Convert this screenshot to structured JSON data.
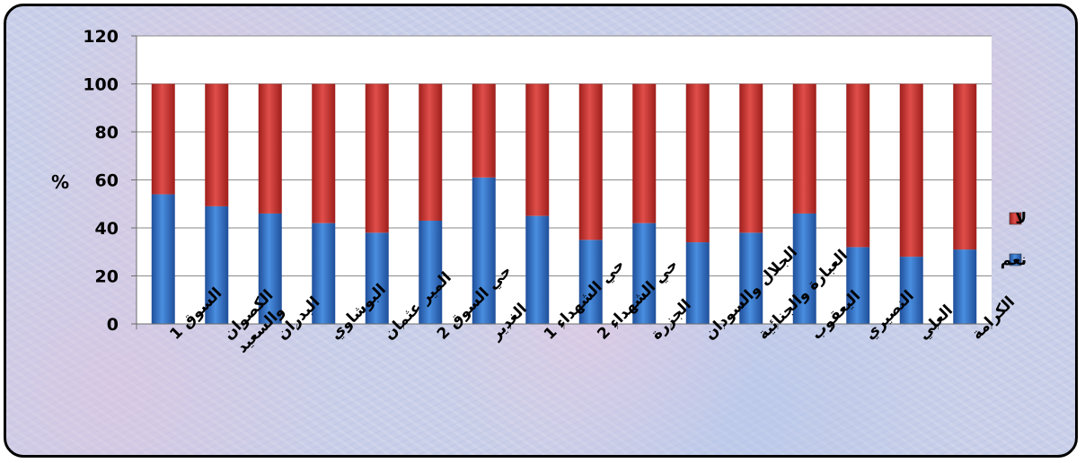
{
  "chart_data": {
    "type": "bar",
    "stacked": true,
    "categories": [
      [
        "السوق 1"
      ],
      [
        "الكصوان",
        "والسعيد"
      ],
      [
        "البدران"
      ],
      [
        "البوشاوي"
      ],
      [
        "المير عثمان"
      ],
      [
        "حي السوق 2"
      ],
      [
        "الغدير"
      ],
      [
        "حي الشهداء 1"
      ],
      [
        "حي الشهداء 2"
      ],
      [
        "الجزرة"
      ],
      [
        "الجلال والسودان"
      ],
      [
        "العبارة والجنائية"
      ],
      [
        "اليعقوب"
      ],
      [
        "النصيري"
      ],
      [
        "العلي"
      ],
      [
        "الكرامة"
      ]
    ],
    "series": [
      {
        "name": "نعم",
        "color": "#2f6fc8",
        "values": [
          54,
          49,
          46,
          42,
          38,
          43,
          61,
          45,
          35,
          42,
          34,
          38,
          46,
          32,
          28,
          31
        ]
      },
      {
        "name": "لا",
        "color": "#c8322f",
        "values": [
          46,
          51,
          54,
          58,
          62,
          57,
          39,
          55,
          65,
          58,
          66,
          62,
          54,
          68,
          72,
          69
        ]
      }
    ],
    "xlabel": "",
    "ylabel": "%",
    "ylim": [
      0,
      120
    ],
    "yticks": [
      0,
      20,
      40,
      60,
      80,
      100,
      120
    ],
    "grid": true,
    "legend_position": "right",
    "legend_order": [
      "لا",
      "نعم"
    ]
  }
}
